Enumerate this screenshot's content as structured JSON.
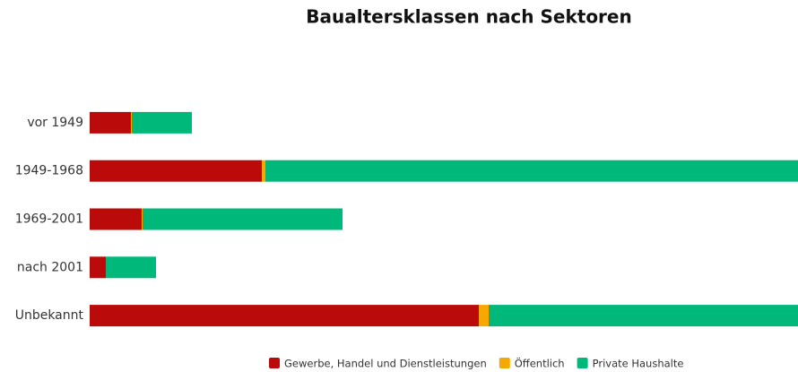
{
  "chart_data": {
    "type": "stacked-bar-horizontal",
    "title": "Baualtersklassen nach Sektoren",
    "categories": [
      "vor 1949",
      "1949-1968",
      "1969-2001",
      "nach 2001",
      "Unbekannt"
    ],
    "series": [
      {
        "name": "Gewerbe, Handel und Dienstleistungen",
        "color": "#bb0a0a",
        "values": [
          46,
          192,
          58,
          18,
          434
        ]
      },
      {
        "name": "Öffentlich",
        "color": "#f5a800",
        "values": [
          1,
          4,
          1,
          0,
          11
        ]
      },
      {
        "name": "Private Haushalte",
        "color": "#00b87a",
        "values": [
          67,
          594,
          223,
          56,
          345
        ]
      }
    ],
    "xlim": [
      0,
      790
    ],
    "legend": "bottom"
  }
}
